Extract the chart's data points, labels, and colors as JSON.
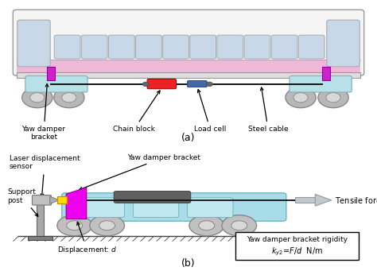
{
  "fig_width": 4.74,
  "fig_height": 3.41,
  "dpi": 100,
  "bg_color": "#ffffff",
  "label_a": "(a)",
  "label_b": "(b)",
  "panel_a": {
    "train_body_color": "#f5f5f5",
    "train_stripe_color": "#f0b8d8",
    "window_color": "#c8d8e8",
    "wheel_color": "#b8b8b8",
    "wheel_inner_color": "#d8d8d8",
    "bracket_color": "#cc22cc",
    "bogie_color": "#b8e0e8",
    "cable_color": "#111111",
    "chain_block_color": "#ee2222",
    "load_cell_color": "#4466aa",
    "labels": [
      "Yaw damper\nbracket",
      "Chain block",
      "Load cell",
      "Steel cable"
    ]
  },
  "panel_b": {
    "bogie_color": "#a8dce8",
    "bogie_inner_color": "#c0e8f0",
    "wheel_color": "#c0c0c0",
    "wheel_inner_color": "#d8d8d8",
    "bracket_color": "#ee00ee",
    "sensor_color": "#c0c0c0",
    "post_color": "#a8a8a8",
    "post_base_color": "#808080",
    "yellow_color": "#ffdd00",
    "centerline_color": "#303030",
    "arrow_color": "#c0c8d0",
    "cable_color": "#111111",
    "cushion_color": "#606060",
    "box_color": "#ffffff",
    "box_border": "#000000",
    "labels": [
      "Laser displacement\nsensor",
      "Yaw damper bracket",
      "Support\npost",
      "Displacement: ",
      "Tensile force: ",
      "Yaw damper bracket rigidity"
    ]
  }
}
